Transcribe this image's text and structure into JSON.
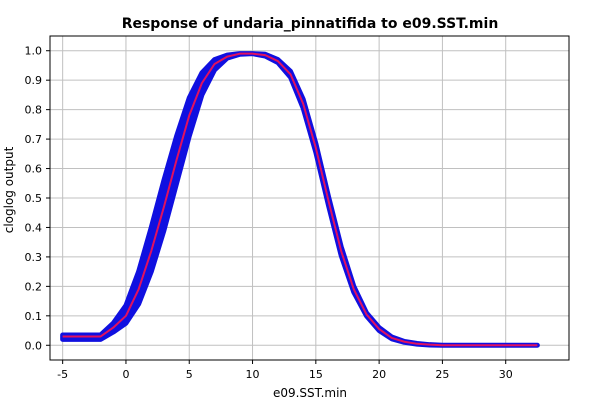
{
  "chart_data": {
    "type": "line",
    "title": "Response of undaria_pinnatifida to e09.SST.min",
    "xlabel": "e09.SST.min",
    "ylabel": "cloglog output",
    "xlim": [
      -6,
      35
    ],
    "ylim": [
      -0.05,
      1.05
    ],
    "xticks": [
      -5,
      0,
      5,
      10,
      15,
      20,
      25,
      30
    ],
    "yticks": [
      0.0,
      0.1,
      0.2,
      0.3,
      0.4,
      0.5,
      0.6,
      0.7,
      0.8,
      0.9,
      1.0
    ],
    "xtick_labels": [
      "-5",
      "0",
      "5",
      "10",
      "15",
      "20",
      "25",
      "30"
    ],
    "ytick_labels": [
      "0.0",
      "0.1",
      "0.2",
      "0.3",
      "0.4",
      "0.5",
      "0.6",
      "0.7",
      "0.8",
      "0.9",
      "1.0"
    ],
    "grid": true,
    "colors": {
      "band": "#1010e0",
      "mean": "#e0115f",
      "grid": "#c0c0c0"
    },
    "series": [
      {
        "role": "mean",
        "x": [
          -5,
          -2,
          -1,
          0,
          1,
          2,
          3,
          4,
          5,
          6,
          7,
          8,
          9,
          10,
          11,
          12,
          13,
          14,
          15,
          16,
          17,
          18,
          19,
          20,
          21,
          22,
          23,
          24,
          25,
          26,
          27,
          28,
          29,
          30,
          31,
          32.5
        ],
        "values": [
          0.03,
          0.03,
          0.06,
          0.1,
          0.19,
          0.32,
          0.47,
          0.63,
          0.78,
          0.89,
          0.955,
          0.98,
          0.99,
          0.99,
          0.985,
          0.965,
          0.92,
          0.82,
          0.67,
          0.49,
          0.32,
          0.19,
          0.105,
          0.055,
          0.025,
          0.012,
          0.005,
          0.002,
          0.0,
          0.0,
          0.0,
          0.0,
          0.0,
          0.0,
          0.0,
          0.0
        ]
      },
      {
        "role": "band-upper",
        "x": [
          -5,
          -2,
          -1,
          0,
          1,
          2,
          3,
          4,
          5,
          6,
          7,
          8,
          9,
          10,
          11,
          12,
          13,
          14,
          15,
          16,
          17,
          18,
          19,
          20,
          21,
          22,
          23,
          24,
          25,
          26,
          27,
          28,
          29,
          30,
          31,
          32.5
        ],
        "values": [
          0.035,
          0.035,
          0.075,
          0.135,
          0.25,
          0.4,
          0.56,
          0.71,
          0.84,
          0.925,
          0.97,
          0.985,
          0.99,
          0.99,
          0.988,
          0.97,
          0.93,
          0.835,
          0.685,
          0.505,
          0.335,
          0.2,
          0.11,
          0.06,
          0.028,
          0.013,
          0.006,
          0.002,
          0.0,
          0.0,
          0.0,
          0.0,
          0.0,
          0.0,
          0.0,
          0.0
        ]
      },
      {
        "role": "band-lower",
        "x": [
          -5,
          -2,
          -1,
          0,
          1,
          2,
          3,
          4,
          5,
          6,
          7,
          8,
          9,
          10,
          11,
          12,
          13,
          14,
          15,
          16,
          17,
          18,
          19,
          20,
          21,
          22,
          23,
          24,
          25,
          26,
          27,
          28,
          29,
          30,
          31,
          32.5
        ],
        "values": [
          0.02,
          0.02,
          0.045,
          0.075,
          0.14,
          0.25,
          0.39,
          0.55,
          0.71,
          0.85,
          0.935,
          0.975,
          0.988,
          0.99,
          0.982,
          0.96,
          0.91,
          0.805,
          0.655,
          0.475,
          0.305,
          0.18,
          0.1,
          0.05,
          0.022,
          0.01,
          0.004,
          0.001,
          0.0,
          0.0,
          0.0,
          0.0,
          0.0,
          0.0,
          0.0,
          0.0
        ]
      }
    ]
  }
}
